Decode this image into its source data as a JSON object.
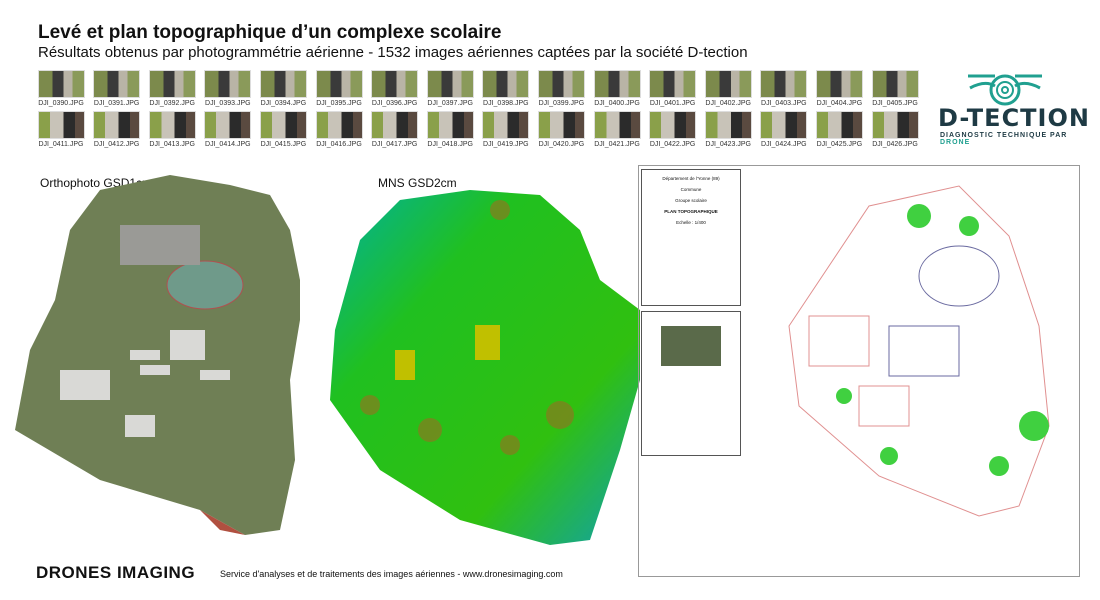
{
  "header": {
    "title": "Levé et plan topographique d’un complexe scolaire",
    "subtitle": "Résultats obtenus par photogrammétrie aérienne - 1532 images aériennes captées par la société D-tection"
  },
  "thumbnails": {
    "row1": [
      "DJI_0390.JPG",
      "DJI_0391.JPG",
      "DJI_0392.JPG",
      "DJI_0393.JPG",
      "DJI_0394.JPG",
      "DJI_0395.JPG",
      "DJI_0396.JPG",
      "DJI_0397.JPG",
      "DJI_0398.JPG",
      "DJI_0399.JPG",
      "DJI_0400.JPG",
      "DJI_0401.JPG",
      "DJI_0402.JPG",
      "DJI_0403.JPG",
      "DJI_0404.JPG",
      "DJI_0405.JPG"
    ],
    "row2": [
      "DJI_0411.JPG",
      "DJI_0412.JPG",
      "DJI_0413.JPG",
      "DJI_0414.JPG",
      "DJI_0415.JPG",
      "DJI_0416.JPG",
      "DJI_0417.JPG",
      "DJI_0418.JPG",
      "DJI_0419.JPG",
      "DJI_0420.JPG",
      "DJI_0421.JPG",
      "DJI_0422.JPG",
      "DJI_0423.JPG",
      "DJI_0424.JPG",
      "DJI_0425.JPG",
      "DJI_0426.JPG"
    ]
  },
  "logo": {
    "name": "D-TECTION",
    "tagline_main": "DIAGNOSTIC TECHNIQUE PAR ",
    "tagline_accent": "DRONE",
    "color": "#1e3a44",
    "accent": "#20a090"
  },
  "panels": {
    "ortho_label": "Orthophoto GSD1cm",
    "mns_label": "MNS GSD2cm"
  },
  "plan": {
    "cartouche": {
      "dept": "Département de l'Yonne (89)",
      "commune": "Commune",
      "groupe": "Groupe scolaire",
      "type": "PLAN TOPOGRAPHIQUE",
      "scale": "Echelle : 1/400"
    }
  },
  "footer": {
    "brand": "DRONES IMAGING",
    "tagline": "Service d'analyses et de traitements des images aériennes - www.dronesimaging.com"
  }
}
